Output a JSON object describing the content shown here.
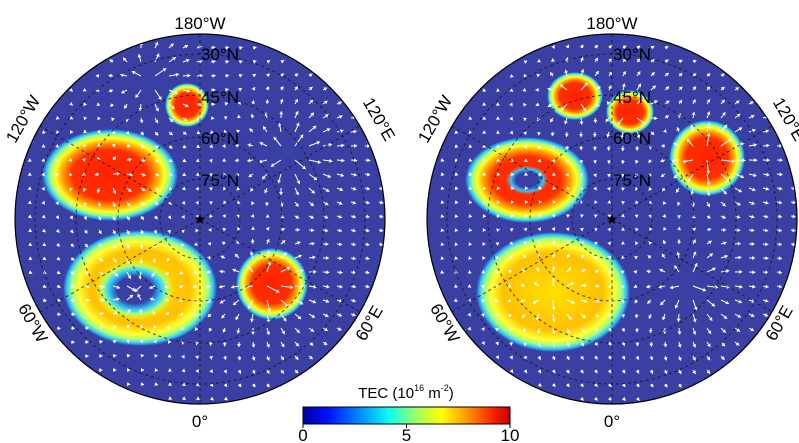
{
  "figure": {
    "panels": [
      {
        "id": "left",
        "lat_labels": [
          "30°N",
          "45°N",
          "60°N",
          "75°N"
        ],
        "lon_labels": {
          "top": "180°W",
          "bottom": "0°",
          "upper_left": "120°W",
          "lower_left": "60°W",
          "upper_right": "120°E",
          "lower_right": "60°E"
        }
      },
      {
        "id": "right",
        "lat_labels": [
          "30°N",
          "45°N",
          "60°N",
          "75°N"
        ],
        "lon_labels": {
          "top": "180°W",
          "bottom": "0°",
          "upper_left": "120°W",
          "lower_left": "60°W",
          "upper_right": "120°E",
          "lower_right": "60°E"
        }
      }
    ],
    "colorbar": {
      "title_main": "TEC (10",
      "title_sup1": "16",
      "title_mid": " m",
      "title_sup2": "-2",
      "title_end": ")",
      "ticks": [
        "0",
        "5",
        "10"
      ],
      "range": [
        0,
        10
      ],
      "colors": [
        "#000090",
        "#0010ff",
        "#00a0ff",
        "#10ffef",
        "#a0ff60",
        "#ffff00",
        "#ff9000",
        "#ff2000",
        "#c00000"
      ]
    },
    "colors": {
      "background": "#3a3fa4",
      "arrows": "#ffffff",
      "grid": "#111111"
    }
  }
}
